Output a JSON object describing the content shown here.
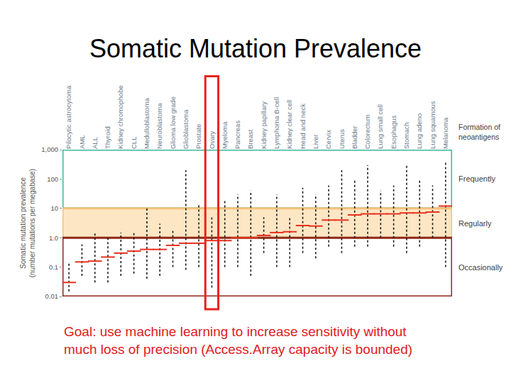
{
  "chart_data": {
    "type": "scatter",
    "title": "Somatic Mutation Prevalence",
    "y_label": "Somatic mutation prevalence\n(number mutations per megabase)",
    "log": "y",
    "grid": false,
    "ylim": [
      0.01,
      1000
    ],
    "yticks": [
      0.01,
      0.1,
      {
        "value": 1,
        "label": "1.0"
      },
      10,
      100,
      {
        "value": 1000,
        "label": "1,000"
      }
    ],
    "categories": [
      "Pilocytic astrocytoma",
      "AML",
      "ALL",
      "Thyroid",
      "Kidney chromophobe",
      "CLL",
      "Medulloblastoma",
      "Neuroblastoma",
      "Glioma low grade",
      "Glioblastoma",
      "Prostate",
      "Ovary",
      "Myeloma",
      "Pancreas",
      "Breast",
      "Kidney papillary",
      "Lymphoma B-cell",
      "Kidney clear cell",
      "Head and neck",
      "Liver",
      "Cervix",
      "Uterus",
      "Bladder",
      "Colorectum",
      "Lung small cell",
      "Esophagus",
      "Stomach",
      "Lung adeno",
      "Lung squamous",
      "Melanoma"
    ],
    "values": [
      0.03,
      0.15,
      0.16,
      0.22,
      0.3,
      0.35,
      0.4,
      0.4,
      0.55,
      0.65,
      0.65,
      0.8,
      0.8,
      1.0,
      1.0,
      1.2,
      1.5,
      1.6,
      2.6,
      2.5,
      4,
      4,
      6,
      6.5,
      6.5,
      6.5,
      7,
      7,
      7.5,
      12
    ],
    "low": [
      0.015,
      0.05,
      0.03,
      0.03,
      0.05,
      0.06,
      0.04,
      0.05,
      0.1,
      0.08,
      0.1,
      0.02,
      0.1,
      0.1,
      0.05,
      0.3,
      0.1,
      0.1,
      0.3,
      0.2,
      0.5,
      0.3,
      0.5,
      0.5,
      1,
      0.5,
      0.3,
      0.5,
      1,
      0.1
    ],
    "high": [
      0.15,
      0.6,
      1.5,
      1,
      1.5,
      1.5,
      10,
      3,
      2,
      200,
      15,
      5,
      20,
      30,
      40,
      5,
      30,
      5,
      50,
      30,
      60,
      200,
      100,
      300,
      40,
      60,
      300,
      100,
      60,
      400
    ],
    "color": "#e8311f",
    "marker": "dash",
    "bands_header": "Formation of\nneoantigens",
    "bands": [
      {
        "label": "Frequently",
        "min": 10,
        "max": 1000,
        "color": "#3fb59c"
      },
      {
        "label": "Regularly",
        "min": 1,
        "max": 10,
        "color": "#f6c27a",
        "fill": "#fde6c4"
      },
      {
        "label": "Occasionally",
        "min": 0.01,
        "max": 1,
        "color": "#8e2b1e"
      }
    ],
    "highlight": "Ovary",
    "highlight_color": "#e8231b",
    "caption": "Goal: use machine learning to increase sensitivity without\nmuch loss of precision (Access.Array capacity is bounded)",
    "caption_color": "#e02020"
  }
}
